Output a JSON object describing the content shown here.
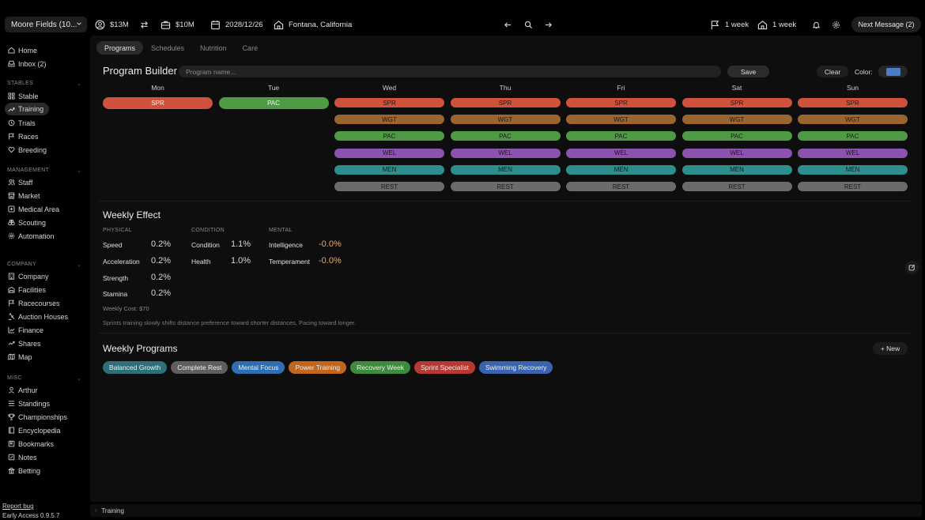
{
  "topbar": {
    "stable_name": "Moore Fields (10...",
    "funds": "$13M",
    "value": "$10M",
    "date": "2028/12/26",
    "location": "Fontana, California",
    "flag_duration": "1 week",
    "home_duration": "1 week",
    "next_message": "Next Message (2)"
  },
  "sidebar": {
    "top": [
      {
        "label": "Home",
        "icon": "home-icon"
      },
      {
        "label": "Inbox (2)",
        "icon": "inbox-icon"
      }
    ],
    "sections": [
      {
        "title": "STABLES",
        "items": [
          {
            "label": "Stable",
            "icon": "grid-icon"
          },
          {
            "label": "Training",
            "icon": "trend-icon",
            "active": true
          },
          {
            "label": "Trials",
            "icon": "clock-icon"
          },
          {
            "label": "Races",
            "icon": "flag-icon"
          },
          {
            "label": "Breeding",
            "icon": "heart-icon"
          }
        ]
      },
      {
        "title": "MANAGEMENT",
        "items": [
          {
            "label": "Staff",
            "icon": "users-icon"
          },
          {
            "label": "Market",
            "icon": "store-icon"
          },
          {
            "label": "Medical Area",
            "icon": "medical-icon"
          },
          {
            "label": "Scouting",
            "icon": "binoculars-icon"
          },
          {
            "label": "Automation",
            "icon": "cog-icon"
          }
        ]
      },
      {
        "title": "COMPANY",
        "items": [
          {
            "label": "Company",
            "icon": "building-icon"
          },
          {
            "label": "Facilities",
            "icon": "facility-icon"
          },
          {
            "label": "Racecourses",
            "icon": "flag-icon"
          },
          {
            "label": "Auction Houses",
            "icon": "gavel-icon"
          },
          {
            "label": "Finance",
            "icon": "finance-icon"
          },
          {
            "label": "Shares",
            "icon": "share-icon"
          },
          {
            "label": "Map",
            "icon": "map-icon"
          }
        ]
      },
      {
        "title": "MISC",
        "items": [
          {
            "label": "Arthur",
            "icon": "user-icon"
          },
          {
            "label": "Standings",
            "icon": "list-icon"
          },
          {
            "label": "Championships",
            "icon": "trophy-icon"
          },
          {
            "label": "Encyclopedia",
            "icon": "book-icon"
          },
          {
            "label": "Bookmarks",
            "icon": "bookmark-icon"
          },
          {
            "label": "Notes",
            "icon": "note-icon"
          },
          {
            "label": "Betting",
            "icon": "betting-icon"
          }
        ]
      }
    ],
    "report_bug": "Report bug",
    "version": "Early Access 0.9.5.7"
  },
  "tabs": [
    "Programs",
    "Schedules",
    "Nutrition",
    "Care"
  ],
  "program_builder": {
    "title": "Program Builder",
    "placeholder": "Program name...",
    "save": "Save",
    "clear": "Clear",
    "color_label": "Color:",
    "color_value": "#4a7fc7"
  },
  "days": [
    "Mon",
    "Tue",
    "Wed",
    "Thu",
    "Fri",
    "Sat",
    "Sun"
  ],
  "colors": {
    "SPR": "#d0513c",
    "PAC": "#4f9a45",
    "WGT": "#9a6531",
    "WEL": "#8b52b0",
    "MEN": "#2c8f8e",
    "REST": "#6b6b6b"
  },
  "schedule": {
    "Mon": [
      "SPR"
    ],
    "Tue": [
      "PAC"
    ],
    "Wed": [
      "SPR",
      "WGT",
      "PAC",
      "WEL",
      "MEN",
      "REST"
    ],
    "Thu": [
      "SPR",
      "WGT",
      "PAC",
      "WEL",
      "MEN",
      "REST"
    ],
    "Fri": [
      "SPR",
      "WGT",
      "PAC",
      "WEL",
      "MEN",
      "REST"
    ],
    "Sat": [
      "SPR",
      "WGT",
      "PAC",
      "WEL",
      "MEN",
      "REST"
    ],
    "Sun": [
      "SPR",
      "WGT",
      "PAC",
      "WEL",
      "MEN",
      "REST"
    ]
  },
  "weekly_effect": {
    "title": "Weekly Effect",
    "physical_label": "PHYSICAL",
    "condition_label": "CONDITION",
    "mental_label": "MENTAL",
    "physical": [
      {
        "name": "Speed",
        "value": "0.2%"
      },
      {
        "name": "Acceleration",
        "value": "0.2%"
      },
      {
        "name": "Strength",
        "value": "0.2%"
      },
      {
        "name": "Stamina",
        "value": "0.2%"
      }
    ],
    "condition": [
      {
        "name": "Condition",
        "value": "1.1%"
      },
      {
        "name": "Health",
        "value": "1.0%"
      }
    ],
    "mental": [
      {
        "name": "Intelligence",
        "value": "-0.0%"
      },
      {
        "name": "Temperament",
        "value": "-0.0%"
      }
    ],
    "cost": "Weekly Cost: $70",
    "description": "Sprints training slowly shifts distance preference toward shorter distances, Pacing toward longer."
  },
  "weekly_programs": {
    "title": "Weekly Programs",
    "new_label": "+ New",
    "items": [
      {
        "label": "Balanced Growth",
        "color": "#2f6f7a"
      },
      {
        "label": "Complete Rest",
        "color": "#5e5e5e"
      },
      {
        "label": "Mental Focus",
        "color": "#2e6fb3"
      },
      {
        "label": "Power Training",
        "color": "#c0661f"
      },
      {
        "label": "Recovery Week",
        "color": "#3f8b3e"
      },
      {
        "label": "Sprint Specialist",
        "color": "#b43a32"
      },
      {
        "label": "Swimming Recovery",
        "color": "#3a64b0"
      }
    ]
  },
  "statusbar": {
    "breadcrumb": "Training"
  }
}
